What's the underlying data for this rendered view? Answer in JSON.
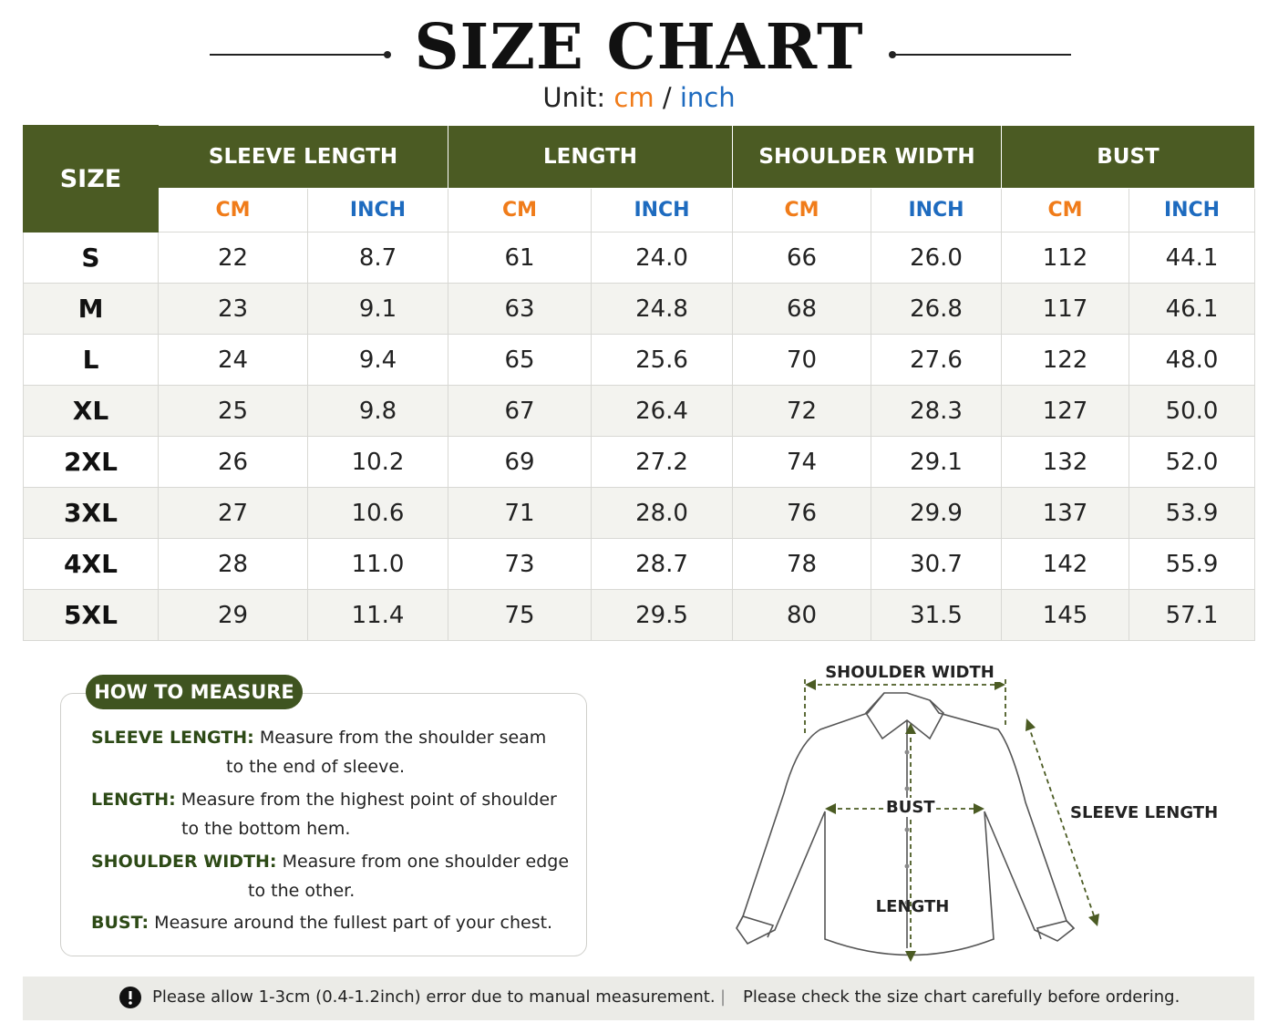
{
  "header": {
    "title": "SIZE CHART",
    "unit_label": "Unit:",
    "unit_cm": "cm",
    "unit_sep": "/",
    "unit_inch": "inch"
  },
  "table": {
    "size_header": "SIZE",
    "groups": [
      "SLEEVE LENGTH",
      "LENGTH",
      "SHOULDER WIDTH",
      "BUST"
    ],
    "sub_headers": [
      "CM",
      "INCH"
    ],
    "rows": [
      [
        "S",
        "22",
        "8.7",
        "61",
        "24.0",
        "66",
        "26.0",
        "112",
        "44.1"
      ],
      [
        "M",
        "23",
        "9.1",
        "63",
        "24.8",
        "68",
        "26.8",
        "117",
        "46.1"
      ],
      [
        "L",
        "24",
        "9.4",
        "65",
        "25.6",
        "70",
        "27.6",
        "122",
        "48.0"
      ],
      [
        "XL",
        "25",
        "9.8",
        "67",
        "26.4",
        "72",
        "28.3",
        "127",
        "50.0"
      ],
      [
        "2XL",
        "26",
        "10.2",
        "69",
        "27.2",
        "74",
        "29.1",
        "132",
        "52.0"
      ],
      [
        "3XL",
        "27",
        "10.6",
        "71",
        "28.0",
        "76",
        "29.9",
        "137",
        "53.9"
      ],
      [
        "4XL",
        "28",
        "11.0",
        "73",
        "28.7",
        "78",
        "30.7",
        "142",
        "55.9"
      ],
      [
        "5XL",
        "29",
        "11.4",
        "75",
        "29.5",
        "80",
        "31.5",
        "145",
        "57.1"
      ]
    ]
  },
  "measure": {
    "title": "HOW TO MEASURE",
    "items": [
      {
        "term": "SLEEVE LENGTH:",
        "text": "Measure from the shoulder seam",
        "cont": "to the end of sleeve."
      },
      {
        "term": "LENGTH:",
        "text": "Measure from the highest point of shoulder",
        "cont": "to the bottom hem."
      },
      {
        "term": "SHOULDER WIDTH:",
        "text": "Measure from one shoulder edge",
        "cont": "to the other."
      },
      {
        "term": "BUST:",
        "text": "Measure around the fullest part of your chest."
      }
    ]
  },
  "diagram": {
    "shoulder": "SHOULDER WIDTH",
    "bust": "BUST",
    "length": "LENGTH",
    "sleeve": "SLEEVE LENGTH"
  },
  "footer": {
    "note1": "Please allow 1-3cm (0.4-1.2inch) error due to manual measurement.",
    "separator": "|",
    "note2": "Please check the size chart carefully before ordering."
  }
}
